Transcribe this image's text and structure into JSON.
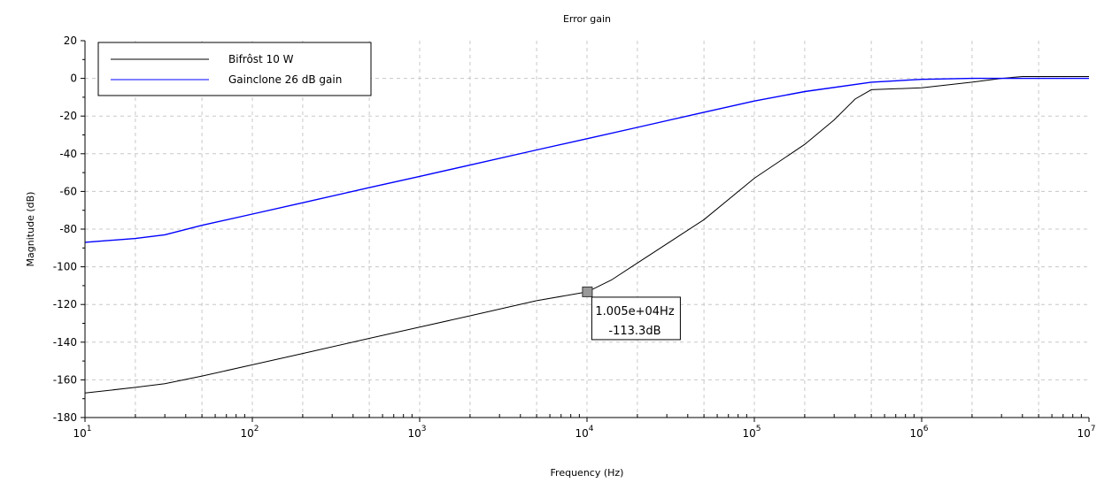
{
  "chart_data": {
    "type": "line",
    "title": "Error gain",
    "xlabel": "Frequency (Hz)",
    "ylabel": "Magnitude (dB)",
    "xscale": "log",
    "xlim": [
      10,
      10000000
    ],
    "ylim": [
      -180,
      20
    ],
    "grid": true,
    "legend_position": "top-left",
    "x_ticks": [
      {
        "value": 10,
        "base": "10",
        "exp": "1"
      },
      {
        "value": 100,
        "base": "10",
        "exp": "2"
      },
      {
        "value": 1000,
        "base": "10",
        "exp": "3"
      },
      {
        "value": 10000,
        "base": "10",
        "exp": "4"
      },
      {
        "value": 100000,
        "base": "10",
        "exp": "5"
      },
      {
        "value": 1000000,
        "base": "10",
        "exp": "6"
      },
      {
        "value": 10000000,
        "base": "10",
        "exp": "7"
      }
    ],
    "y_ticks": [
      20,
      0,
      -20,
      -40,
      -60,
      -80,
      -100,
      -120,
      -140,
      -160,
      -180
    ],
    "series": [
      {
        "name": "Bifrôst 10 W",
        "color": "#000000",
        "x": [
          10,
          20,
          30,
          50,
          100,
          200,
          500,
          1000,
          2000,
          5000,
          10050,
          14000,
          20000,
          50000,
          100000,
          200000,
          300000,
          400000,
          500000,
          1000000,
          2000000,
          3000000,
          4000000,
          5000000,
          10000000
        ],
        "y": [
          -167,
          -164,
          -162,
          -158,
          -152,
          -146,
          -138,
          -132,
          -126,
          -118,
          -113.3,
          -107,
          -98,
          -75,
          -53,
          -35,
          -22,
          -11,
          -6,
          -5,
          -2,
          0,
          1,
          1,
          1
        ]
      },
      {
        "name": "Gainclone 26 dB gain",
        "color": "#0000ff",
        "x": [
          10,
          20,
          30,
          50,
          100,
          200,
          500,
          1000,
          2000,
          5000,
          10000,
          20000,
          50000,
          100000,
          200000,
          500000,
          1000000,
          2000000,
          5000000,
          10000000
        ],
        "y": [
          -87,
          -85,
          -83,
          -78,
          -72,
          -66,
          -58,
          -52,
          -46,
          -38,
          -32,
          -26,
          -18,
          -12,
          -7,
          -2,
          -0.5,
          0,
          0,
          0
        ]
      }
    ],
    "annotations": [
      {
        "series": 0,
        "x": 10050,
        "y": -113.3,
        "line1": "1.005e+04Hz",
        "line2": "-113.3dB"
      }
    ]
  }
}
